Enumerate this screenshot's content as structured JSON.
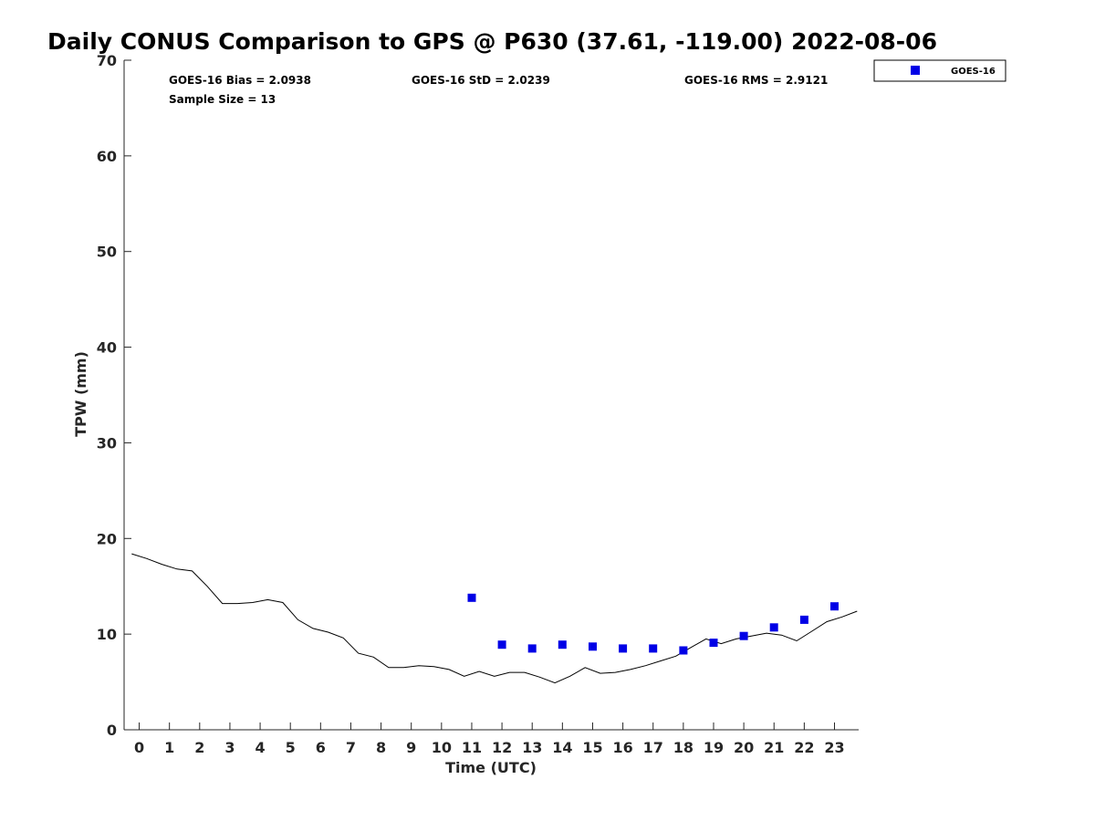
{
  "chart_data": {
    "type": "scatter",
    "title": "Daily CONUS Comparison to GPS @ P630 (37.61, -119.00) 2022-08-06",
    "xlabel": "Time (UTC)",
    "ylabel": "TPW (mm)",
    "xlim": [
      -0.5,
      23.8
    ],
    "ylim": [
      0,
      70
    ],
    "x_ticks": [
      "0",
      "1",
      "2",
      "3",
      "4",
      "5",
      "6",
      "7",
      "8",
      "9",
      "10",
      "11",
      "12",
      "13",
      "14",
      "15",
      "16",
      "17",
      "18",
      "19",
      "20",
      "21",
      "22",
      "23"
    ],
    "y_ticks": [
      "0",
      "10",
      "20",
      "30",
      "40",
      "50",
      "60",
      "70"
    ],
    "grid": false,
    "legend_position": "top-right outside",
    "stats": {
      "bias": "GOES-16 Bias = 2.0938",
      "std": "GOES-16 StD = 2.0239",
      "rms": "GOES-16 RMS = 2.9121",
      "sample": "Sample Size = 13"
    },
    "series": [
      {
        "name": "GOES-16",
        "kind": "scatter",
        "marker": "square",
        "color": "#0000e6",
        "x": [
          11,
          12,
          13,
          14,
          15,
          16,
          17,
          18,
          19,
          20,
          21,
          22,
          23
        ],
        "y": [
          13.8,
          8.9,
          8.5,
          8.9,
          8.7,
          8.5,
          8.5,
          8.3,
          9.1,
          9.8,
          10.7,
          11.5,
          12.9
        ]
      },
      {
        "kind": "line",
        "color": "#000000",
        "x": [
          -0.25,
          0.25,
          0.75,
          1.25,
          1.75,
          2.25,
          2.75,
          3.25,
          3.75,
          4.25,
          4.75,
          5.25,
          5.75,
          6.25,
          6.75,
          7.25,
          7.75,
          8.25,
          8.75,
          9.25,
          9.75,
          10.25,
          10.75,
          11.25,
          11.75,
          12.25,
          12.75,
          13.25,
          13.75,
          14.25,
          14.75,
          15.25,
          15.75,
          16.25,
          16.75,
          17.25,
          17.75,
          18.25,
          18.75,
          19.25,
          19.75,
          20.25,
          20.75,
          21.25,
          21.75,
          22.25,
          22.75,
          23.25,
          23.75
        ],
        "y": [
          18.4,
          17.9,
          17.3,
          16.8,
          16.6,
          15.0,
          13.2,
          13.2,
          13.3,
          13.6,
          13.3,
          11.5,
          10.6,
          10.2,
          9.6,
          8.0,
          7.6,
          6.5,
          6.5,
          6.7,
          6.6,
          6.3,
          5.6,
          6.1,
          5.6,
          6.0,
          6.0,
          5.5,
          4.9,
          5.6,
          6.5,
          5.9,
          6.0,
          6.3,
          6.7,
          7.2,
          7.7,
          8.6,
          9.5,
          9.0,
          9.5,
          9.8,
          10.1,
          9.9,
          9.3,
          10.3,
          11.3,
          11.8,
          12.4
        ]
      }
    ]
  }
}
